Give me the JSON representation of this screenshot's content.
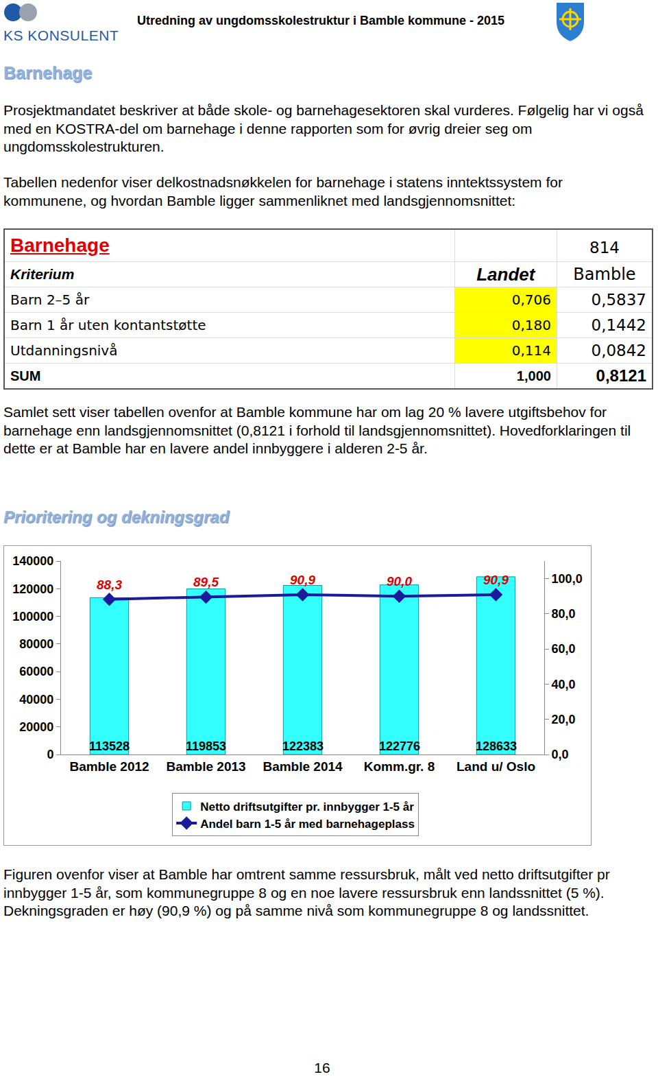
{
  "header": {
    "logo": "KS KONSULENT",
    "title": "Utredning av ungdomsskolestruktur i Bamble kommune - 2015"
  },
  "heading1": "Barnehage",
  "intro_paragraphs": [
    "Prosjektmandatet beskriver at både skole- og barnehagesektoren skal vurderes. Følgelig har vi også med en KOSTRA-del om barnehage i denne rapporten som for øvrig dreier seg om ungdomsskolestrukturen.",
    "Tabellen nedenfor viser delkostnadsnøkkelen for barnehage i statens inntektssystem for kommunene, og hvordan Bamble ligger sammenliknet med landsgjennomsnittet:"
  ],
  "table": {
    "title": "Barnehage",
    "title_value": "814",
    "header": [
      "Kriterium",
      "Landet",
      "Bamble"
    ],
    "rows": [
      [
        "Barn 2–5 år",
        "0,706",
        "0,5837"
      ],
      [
        "Barn 1 år uten kontantstøtte",
        "0,180",
        "0,1442"
      ],
      [
        "Utdanningsnivå",
        "0,114",
        "0,0842"
      ],
      [
        "SUM",
        "1,000",
        "0,8121"
      ]
    ]
  },
  "table_comment": "Samlet sett viser tabellen ovenfor at Bamble kommune har om lag 20 % lavere utgiftsbehov for barnehage enn landsgjennomsnittet (0,8121 i forhold til landsgjennomsnittet). Hovedforklaringen til dette er at Bamble har en lavere andel innbyggere i alderen 2-5 år.",
  "heading2": "Prioritering og dekningsgrad",
  "chart_data": {
    "type": "bar",
    "categories": [
      "Bamble 2012",
      "Bamble 2013",
      "Bamble 2014",
      "Komm.gr. 8",
      "Land u/ Oslo"
    ],
    "series": [
      {
        "name": "Netto driftsutgifter pr. innbygger 1-5 år",
        "type": "bar",
        "color": "#33ffff",
        "values": [
          113528,
          119853,
          122383,
          122776,
          128633
        ]
      },
      {
        "name": "Andel barn 1-5 år med barnehageplass",
        "type": "line",
        "color": "#1a1a9c",
        "marker": "diamond",
        "axis": "y2",
        "values": [
          88.3,
          89.5,
          90.9,
          90.0,
          90.9
        ],
        "value_labels": [
          "88,3",
          "89,5",
          "90,9",
          "90,0",
          "90,9"
        ]
      }
    ],
    "ylim": [
      0,
      140000
    ],
    "yticks": [
      0,
      20000,
      40000,
      60000,
      80000,
      100000,
      120000,
      140000
    ],
    "y2lim": [
      0,
      110
    ],
    "y2ticks": [
      {
        "value": 0,
        "label": "0,0"
      },
      {
        "value": 20,
        "label": "20,0"
      },
      {
        "value": 40,
        "label": "40,0"
      },
      {
        "value": 60,
        "label": "60,0"
      },
      {
        "value": 80,
        "label": "80,0"
      },
      {
        "value": 100,
        "label": "100,0"
      }
    ],
    "data_labels": true,
    "grid": false,
    "legend": "bottom"
  },
  "chart_comment": "Figuren ovenfor viser at Bamble har omtrent samme ressursbruk, målt ved netto driftsutgifter pr innbygger 1-5 år, som kommunegruppe 8 og en noe lavere ressursbruk enn landssnittet (5 %). Dekningsgraden er høy (90,9 %) og på samme nivå som kommunegruppe 8 og landssnittet.",
  "page_number": "16"
}
